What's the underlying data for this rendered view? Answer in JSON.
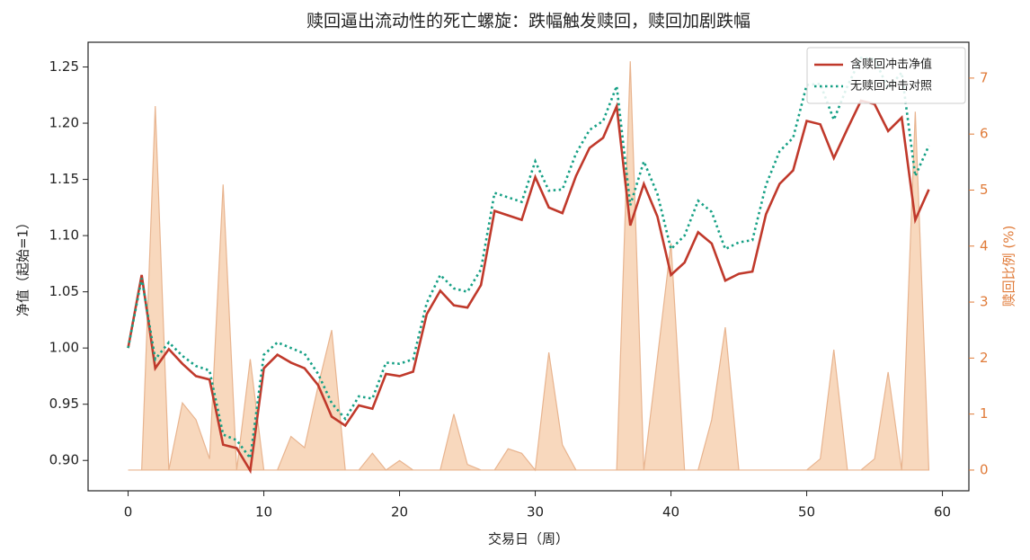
{
  "chart_data": {
    "type": "line",
    "title": "赎回逼出流动性的死亡螺旋：跌幅触发赎回，赎回加剧跌幅",
    "xlabel": "交易日（周）",
    "ylabel": "净值（起始=1）",
    "y2label": "赎回比例 (%)",
    "x": [
      0,
      1,
      2,
      3,
      4,
      5,
      6,
      7,
      8,
      9,
      10,
      11,
      12,
      13,
      14,
      15,
      16,
      17,
      18,
      19,
      20,
      21,
      22,
      23,
      24,
      25,
      26,
      27,
      28,
      29,
      30,
      31,
      32,
      33,
      34,
      35,
      36,
      37,
      38,
      39,
      40,
      41,
      42,
      43,
      44,
      45,
      46,
      47,
      48,
      49,
      50,
      51,
      52,
      53,
      54,
      55,
      56,
      57,
      58,
      59
    ],
    "xlim": [
      -2.95,
      61.95
    ],
    "xticks": [
      0,
      10,
      20,
      30,
      40,
      50,
      60
    ],
    "ylim": [
      0.873,
      1.272
    ],
    "yticks": [
      {
        "value": 0.9,
        "label": "0.90"
      },
      0.95,
      {
        "value": 1.0,
        "label": "1.00"
      },
      1.05,
      {
        "value": 1.1,
        "label": "1.10"
      },
      1.15,
      {
        "value": 1.2,
        "label": "1.20"
      },
      1.25
    ],
    "y2lim": [
      -0.37,
      7.64
    ],
    "y2ticks": [
      0,
      1,
      2,
      3,
      4,
      5,
      6,
      7
    ],
    "y2color": "#e07b39",
    "legend": "upper right",
    "series": [
      {
        "kind": "area",
        "axis": "y2",
        "color": "#f5cba7",
        "edgecolor": "#e8b48f",
        "values": [
          0,
          0,
          6.5,
          0,
          1.2,
          0.9,
          0.2,
          5.1,
          0,
          1.98,
          0,
          0,
          0.6,
          0.4,
          1.5,
          2.5,
          0,
          0,
          0.3,
          0,
          0.17,
          0,
          0,
          0,
          1.0,
          0.1,
          0,
          0,
          0.38,
          0.3,
          0,
          2.1,
          0.45,
          0,
          0,
          0,
          0,
          7.3,
          0,
          2.0,
          4.05,
          0,
          0,
          0.9,
          2.55,
          0,
          0,
          0,
          0,
          0,
          0,
          0.2,
          2.15,
          0,
          0,
          0.2,
          1.75,
          0,
          6.4,
          0
        ]
      },
      {
        "kind": "line",
        "name": "含赎回冲击净值",
        "color": "#c0392b",
        "dash": "solid",
        "values": [
          1.0,
          1.065,
          0.982,
          0.999,
          0.986,
          0.975,
          0.972,
          0.914,
          0.911,
          0.891,
          0.982,
          0.994,
          0.987,
          0.982,
          0.967,
          0.939,
          0.931,
          0.949,
          0.946,
          0.977,
          0.975,
          0.979,
          1.03,
          1.051,
          1.038,
          1.036,
          1.056,
          1.122,
          1.118,
          1.114,
          1.152,
          1.125,
          1.12,
          1.153,
          1.178,
          1.187,
          1.215,
          1.109,
          1.146,
          1.117,
          1.065,
          1.076,
          1.103,
          1.093,
          1.06,
          1.066,
          1.068,
          1.119,
          1.146,
          1.158,
          1.202,
          1.199,
          1.169,
          1.195,
          1.22,
          1.217,
          1.193,
          1.205,
          1.114,
          1.141
        ]
      },
      {
        "kind": "line",
        "name": "无赎回冲击对照",
        "color": "#16a085",
        "dash": "dotted",
        "values": [
          1.0,
          1.062,
          0.99,
          1.005,
          0.993,
          0.984,
          0.98,
          0.923,
          0.918,
          0.902,
          0.994,
          1.005,
          1.0,
          0.995,
          0.977,
          0.951,
          0.937,
          0.957,
          0.955,
          0.987,
          0.986,
          0.99,
          1.04,
          1.065,
          1.053,
          1.05,
          1.07,
          1.138,
          1.134,
          1.13,
          1.166,
          1.14,
          1.141,
          1.173,
          1.194,
          1.202,
          1.233,
          1.127,
          1.166,
          1.137,
          1.088,
          1.1,
          1.131,
          1.121,
          1.088,
          1.094,
          1.096,
          1.145,
          1.175,
          1.187,
          1.234,
          1.235,
          1.203,
          1.233,
          1.258,
          1.257,
          1.231,
          1.245,
          1.153,
          1.18
        ]
      }
    ]
  }
}
